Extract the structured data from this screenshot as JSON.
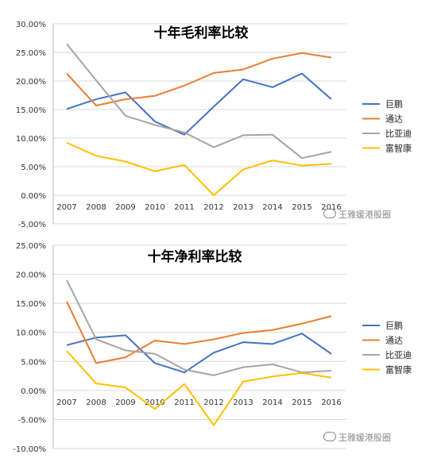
{
  "chart_data": [
    {
      "type": "line",
      "title": "十年毛利率比较",
      "categories": [
        "2007",
        "2008",
        "2009",
        "2010",
        "2011",
        "2012",
        "2013",
        "2014",
        "2015",
        "2016"
      ],
      "ylim": [
        -0.05,
        0.3
      ],
      "yticks": [
        "30.00%",
        "25.00%",
        "20.00%",
        "15.00%",
        "10.00%",
        "5.00%",
        "0.00%",
        "-5.00%"
      ],
      "grid": true,
      "legend": "right",
      "series": [
        {
          "name": "巨鹏",
          "color": "#4472C4",
          "values": [
            0.151,
            0.168,
            0.18,
            0.129,
            0.106,
            0.155,
            0.203,
            0.189,
            0.213,
            0.168
          ]
        },
        {
          "name": "通达",
          "color": "#ED7D31",
          "values": [
            0.213,
            0.157,
            0.168,
            0.174,
            0.192,
            0.214,
            0.22,
            0.239,
            0.249,
            0.241
          ]
        },
        {
          "name": "比亚迪",
          "color": "#A5A5A5",
          "values": [
            0.265,
            0.201,
            0.139,
            0.123,
            0.11,
            0.084,
            0.105,
            0.106,
            0.065,
            0.076
          ]
        },
        {
          "name": "富智康",
          "color": "#FFC000",
          "values": [
            0.092,
            0.069,
            0.059,
            0.042,
            0.053,
            0.0,
            0.045,
            0.061,
            0.052,
            0.055
          ]
        }
      ],
      "watermark": "王雅媛港股圈"
    },
    {
      "type": "line",
      "title": "十年净利率比较",
      "categories": [
        "2007",
        "2008",
        "2009",
        "2010",
        "2011",
        "2012",
        "2013",
        "2014",
        "2015",
        "2016"
      ],
      "ylim": [
        -0.1,
        0.25
      ],
      "yticks": [
        "25.00%",
        "20.00%",
        "15.00%",
        "10.00%",
        "5.00%",
        "0.00%",
        "-5.00%",
        "-10.00%"
      ],
      "grid": true,
      "legend": "right",
      "series": [
        {
          "name": "巨鹏",
          "color": "#4472C4",
          "values": [
            0.078,
            0.091,
            0.095,
            0.047,
            0.031,
            0.065,
            0.083,
            0.08,
            0.098,
            0.063
          ]
        },
        {
          "name": "通达",
          "color": "#ED7D31",
          "values": [
            0.153,
            0.047,
            0.057,
            0.086,
            0.08,
            0.088,
            0.099,
            0.104,
            0.115,
            0.128
          ]
        },
        {
          "name": "比亚迪",
          "color": "#A5A5A5",
          "values": [
            0.19,
            0.088,
            0.069,
            0.063,
            0.036,
            0.026,
            0.04,
            0.045,
            0.031,
            0.034
          ]
        },
        {
          "name": "富智康",
          "color": "#FFC000",
          "values": [
            0.068,
            0.012,
            0.005,
            -0.032,
            0.011,
            -0.06,
            0.015,
            0.024,
            0.03,
            0.022
          ]
        }
      ],
      "watermark": "王雅媛港股圈"
    }
  ]
}
